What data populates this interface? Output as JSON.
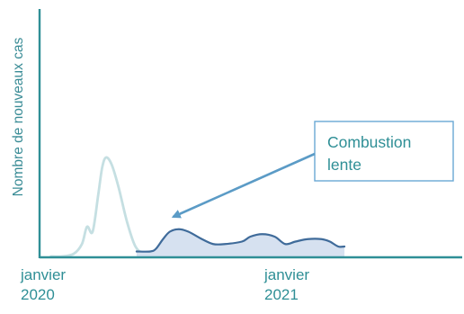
{
  "chart_data": {
    "type": "area",
    "title": "",
    "xlabel": "",
    "ylabel": "Nombre de nouveaux cas",
    "x_ticks": [
      {
        "date": "2020-01",
        "lines": [
          "janvier",
          "2020"
        ]
      },
      {
        "date": "2021-01",
        "lines": [
          "janvier",
          "2021"
        ]
      }
    ],
    "xlim": [
      "2019-12-15",
      "2021-12-31"
    ],
    "ylim": [
      0,
      100
    ],
    "y_ticks": [],
    "grid": false,
    "legend": "none",
    "annotation": {
      "lines": [
        "Combustion",
        "lente"
      ],
      "points_to": {
        "date": "2020-08-05",
        "value": 16
      }
    },
    "series": [
      {
        "part": "first-wave",
        "color": "#c5dfe2",
        "fill": false,
        "points": [
          {
            "date": "2020-01-01",
            "value": 0
          },
          {
            "date": "2020-01-20",
            "value": 0
          },
          {
            "date": "2020-02-10",
            "value": 1
          },
          {
            "date": "2020-02-25",
            "value": 5
          },
          {
            "date": "2020-03-05",
            "value": 12
          },
          {
            "date": "2020-03-15",
            "value": 10
          },
          {
            "date": "2020-03-25",
            "value": 25
          },
          {
            "date": "2020-04-01",
            "value": 36
          },
          {
            "date": "2020-04-08",
            "value": 40
          },
          {
            "date": "2020-04-18",
            "value": 37
          },
          {
            "date": "2020-04-30",
            "value": 28
          },
          {
            "date": "2020-05-15",
            "value": 14
          },
          {
            "date": "2020-05-30",
            "value": 4
          },
          {
            "date": "2020-06-15",
            "value": 1
          },
          {
            "date": "2020-07-01",
            "value": 0
          }
        ]
      },
      {
        "part": "slow-burn",
        "color": "#3f6b9a",
        "fill": true,
        "fill_color": "#d6e1f0",
        "points": [
          {
            "date": "2020-06-01",
            "value": 2
          },
          {
            "date": "2020-06-25",
            "value": 2
          },
          {
            "date": "2020-07-05",
            "value": 3
          },
          {
            "date": "2020-07-18",
            "value": 7
          },
          {
            "date": "2020-07-30",
            "value": 10
          },
          {
            "date": "2020-08-15",
            "value": 11
          },
          {
            "date": "2020-09-01",
            "value": 10
          },
          {
            "date": "2020-09-25",
            "value": 7
          },
          {
            "date": "2020-10-15",
            "value": 5
          },
          {
            "date": "2020-11-05",
            "value": 5
          },
          {
            "date": "2020-12-05",
            "value": 6
          },
          {
            "date": "2020-12-20",
            "value": 8
          },
          {
            "date": "2021-01-10",
            "value": 9
          },
          {
            "date": "2021-02-01",
            "value": 8
          },
          {
            "date": "2021-02-20",
            "value": 5
          },
          {
            "date": "2021-03-10",
            "value": 6
          },
          {
            "date": "2021-04-01",
            "value": 7
          },
          {
            "date": "2021-04-25",
            "value": 7
          },
          {
            "date": "2021-05-10",
            "value": 6
          },
          {
            "date": "2021-05-25",
            "value": 4
          },
          {
            "date": "2021-06-05",
            "value": 4
          }
        ]
      }
    ]
  }
}
